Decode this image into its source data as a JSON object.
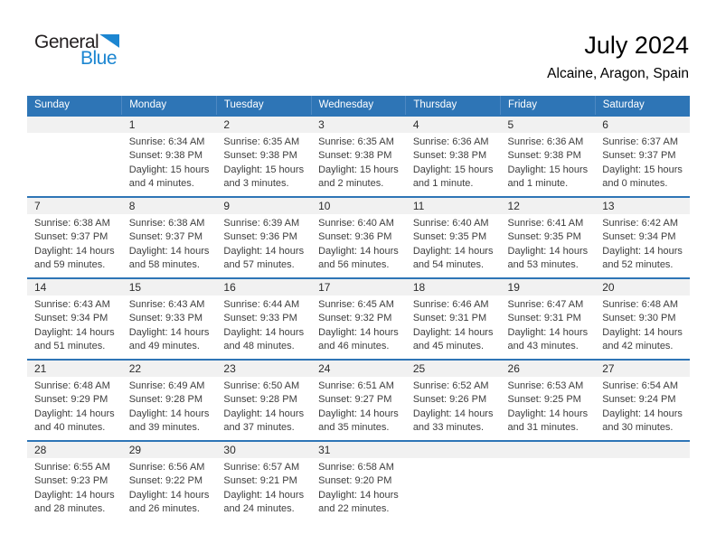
{
  "logo": {
    "part1": "General",
    "part2": "Blue"
  },
  "header": {
    "title": "July 2024",
    "location": "Alcaine, Aragon, Spain"
  },
  "colors": {
    "header_bg": "#2E75B6",
    "week_divider": "#2E75B6",
    "day_band_bg": "#F1F1F1",
    "logo_blue": "#1C86D1"
  },
  "calendar": {
    "weekdays": [
      "Sunday",
      "Monday",
      "Tuesday",
      "Wednesday",
      "Thursday",
      "Friday",
      "Saturday"
    ],
    "weeks": [
      [
        null,
        {
          "day": "1",
          "lines": [
            "Sunrise: 6:34 AM",
            "Sunset: 9:38 PM",
            "Daylight: 15 hours and 4 minutes."
          ]
        },
        {
          "day": "2",
          "lines": [
            "Sunrise: 6:35 AM",
            "Sunset: 9:38 PM",
            "Daylight: 15 hours and 3 minutes."
          ]
        },
        {
          "day": "3",
          "lines": [
            "Sunrise: 6:35 AM",
            "Sunset: 9:38 PM",
            "Daylight: 15 hours and 2 minutes."
          ]
        },
        {
          "day": "4",
          "lines": [
            "Sunrise: 6:36 AM",
            "Sunset: 9:38 PM",
            "Daylight: 15 hours and 1 minute."
          ]
        },
        {
          "day": "5",
          "lines": [
            "Sunrise: 6:36 AM",
            "Sunset: 9:38 PM",
            "Daylight: 15 hours and 1 minute."
          ]
        },
        {
          "day": "6",
          "lines": [
            "Sunrise: 6:37 AM",
            "Sunset: 9:37 PM",
            "Daylight: 15 hours and 0 minutes."
          ]
        }
      ],
      [
        {
          "day": "7",
          "lines": [
            "Sunrise: 6:38 AM",
            "Sunset: 9:37 PM",
            "Daylight: 14 hours and 59 minutes."
          ]
        },
        {
          "day": "8",
          "lines": [
            "Sunrise: 6:38 AM",
            "Sunset: 9:37 PM",
            "Daylight: 14 hours and 58 minutes."
          ]
        },
        {
          "day": "9",
          "lines": [
            "Sunrise: 6:39 AM",
            "Sunset: 9:36 PM",
            "Daylight: 14 hours and 57 minutes."
          ]
        },
        {
          "day": "10",
          "lines": [
            "Sunrise: 6:40 AM",
            "Sunset: 9:36 PM",
            "Daylight: 14 hours and 56 minutes."
          ]
        },
        {
          "day": "11",
          "lines": [
            "Sunrise: 6:40 AM",
            "Sunset: 9:35 PM",
            "Daylight: 14 hours and 54 minutes."
          ]
        },
        {
          "day": "12",
          "lines": [
            "Sunrise: 6:41 AM",
            "Sunset: 9:35 PM",
            "Daylight: 14 hours and 53 minutes."
          ]
        },
        {
          "day": "13",
          "lines": [
            "Sunrise: 6:42 AM",
            "Sunset: 9:34 PM",
            "Daylight: 14 hours and 52 minutes."
          ]
        }
      ],
      [
        {
          "day": "14",
          "lines": [
            "Sunrise: 6:43 AM",
            "Sunset: 9:34 PM",
            "Daylight: 14 hours and 51 minutes."
          ]
        },
        {
          "day": "15",
          "lines": [
            "Sunrise: 6:43 AM",
            "Sunset: 9:33 PM",
            "Daylight: 14 hours and 49 minutes."
          ]
        },
        {
          "day": "16",
          "lines": [
            "Sunrise: 6:44 AM",
            "Sunset: 9:33 PM",
            "Daylight: 14 hours and 48 minutes."
          ]
        },
        {
          "day": "17",
          "lines": [
            "Sunrise: 6:45 AM",
            "Sunset: 9:32 PM",
            "Daylight: 14 hours and 46 minutes."
          ]
        },
        {
          "day": "18",
          "lines": [
            "Sunrise: 6:46 AM",
            "Sunset: 9:31 PM",
            "Daylight: 14 hours and 45 minutes."
          ]
        },
        {
          "day": "19",
          "lines": [
            "Sunrise: 6:47 AM",
            "Sunset: 9:31 PM",
            "Daylight: 14 hours and 43 minutes."
          ]
        },
        {
          "day": "20",
          "lines": [
            "Sunrise: 6:48 AM",
            "Sunset: 9:30 PM",
            "Daylight: 14 hours and 42 minutes."
          ]
        }
      ],
      [
        {
          "day": "21",
          "lines": [
            "Sunrise: 6:48 AM",
            "Sunset: 9:29 PM",
            "Daylight: 14 hours and 40 minutes."
          ]
        },
        {
          "day": "22",
          "lines": [
            "Sunrise: 6:49 AM",
            "Sunset: 9:28 PM",
            "Daylight: 14 hours and 39 minutes."
          ]
        },
        {
          "day": "23",
          "lines": [
            "Sunrise: 6:50 AM",
            "Sunset: 9:28 PM",
            "Daylight: 14 hours and 37 minutes."
          ]
        },
        {
          "day": "24",
          "lines": [
            "Sunrise: 6:51 AM",
            "Sunset: 9:27 PM",
            "Daylight: 14 hours and 35 minutes."
          ]
        },
        {
          "day": "25",
          "lines": [
            "Sunrise: 6:52 AM",
            "Sunset: 9:26 PM",
            "Daylight: 14 hours and 33 minutes."
          ]
        },
        {
          "day": "26",
          "lines": [
            "Sunrise: 6:53 AM",
            "Sunset: 9:25 PM",
            "Daylight: 14 hours and 31 minutes."
          ]
        },
        {
          "day": "27",
          "lines": [
            "Sunrise: 6:54 AM",
            "Sunset: 9:24 PM",
            "Daylight: 14 hours and 30 minutes."
          ]
        }
      ],
      [
        {
          "day": "28",
          "lines": [
            "Sunrise: 6:55 AM",
            "Sunset: 9:23 PM",
            "Daylight: 14 hours and 28 minutes."
          ]
        },
        {
          "day": "29",
          "lines": [
            "Sunrise: 6:56 AM",
            "Sunset: 9:22 PM",
            "Daylight: 14 hours and 26 minutes."
          ]
        },
        {
          "day": "30",
          "lines": [
            "Sunrise: 6:57 AM",
            "Sunset: 9:21 PM",
            "Daylight: 14 hours and 24 minutes."
          ]
        },
        {
          "day": "31",
          "lines": [
            "Sunrise: 6:58 AM",
            "Sunset: 9:20 PM",
            "Daylight: 14 hours and 22 minutes."
          ]
        },
        null,
        null,
        null
      ]
    ]
  }
}
